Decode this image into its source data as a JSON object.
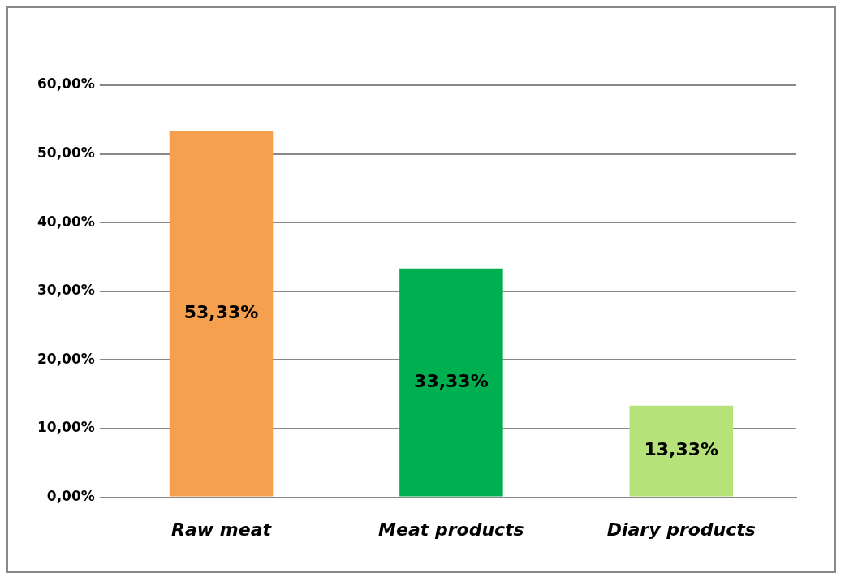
{
  "chart_data": {
    "type": "bar",
    "categories": [
      "Raw meat",
      "Meat products",
      "Diary products"
    ],
    "values": [
      53.33,
      33.33,
      13.33
    ],
    "colors": [
      "#f5a04f",
      "#00b050",
      "#b5e37a"
    ],
    "value_labels": [
      "53,33%",
      "33,33%",
      "13,33%"
    ],
    "ylim": [
      0,
      60
    ],
    "yticks": [
      {
        "value": 0,
        "label": "0,00%"
      },
      {
        "value": 10,
        "label": "10,00%"
      },
      {
        "value": 20,
        "label": "20,00%"
      },
      {
        "value": 30,
        "label": "30,00%"
      },
      {
        "value": 40,
        "label": "40,00%"
      },
      {
        "value": 50,
        "label": "50,00%"
      },
      {
        "value": 60,
        "label": "60,00%"
      }
    ],
    "grid": "y",
    "legend": false
  }
}
